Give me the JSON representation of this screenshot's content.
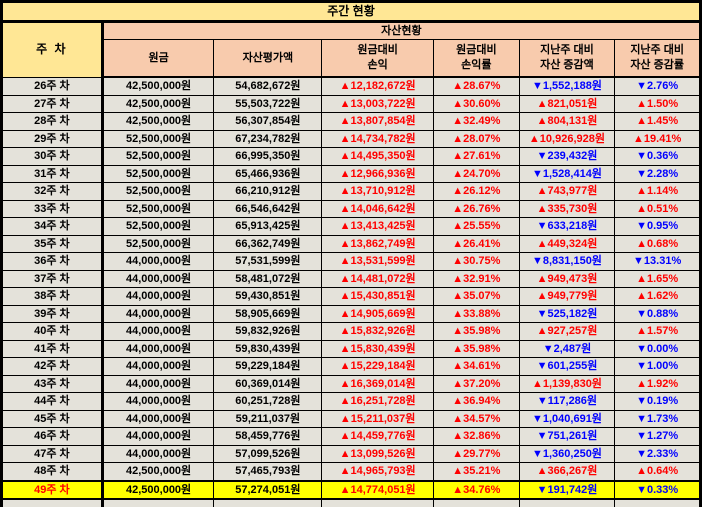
{
  "title": "주간 현황",
  "group_header": "자산현황",
  "week_header": "주 차",
  "columns": [
    {
      "line1": "원금",
      "line2": ""
    },
    {
      "line1": "자산평가액",
      "line2": ""
    },
    {
      "line1": "원금대비",
      "line2": "손익"
    },
    {
      "line1": "원금대비",
      "line2": "손익률"
    },
    {
      "line1": "지난주 대비",
      "line2": "자산 증감액"
    },
    {
      "line1": "지난주 대비",
      "line2": "자산 증감률"
    }
  ],
  "colors": {
    "yellow_header": "#FFE795",
    "peach_header": "#F8CBAD",
    "row_background": "#E4E2DA",
    "highlight_row": "#FFFF00",
    "gain_red": "#FF0000",
    "loss_blue": "#0000FF",
    "border": "#000000"
  },
  "rows": [
    {
      "week": "26주 차",
      "cells": [
        "42,500,000원",
        "54,682,672원",
        "▲12,182,672원",
        "▲28.67%",
        "▼1,552,188원",
        "▼2.76%"
      ],
      "highlight": false
    },
    {
      "week": "27주 차",
      "cells": [
        "42,500,000원",
        "55,503,722원",
        "▲13,003,722원",
        "▲30.60%",
        "▲821,051원",
        "▲1.50%"
      ],
      "highlight": false
    },
    {
      "week": "28주 차",
      "cells": [
        "42,500,000원",
        "56,307,854원",
        "▲13,807,854원",
        "▲32.49%",
        "▲804,131원",
        "▲1.45%"
      ],
      "highlight": false
    },
    {
      "week": "29주 차",
      "cells": [
        "52,500,000원",
        "67,234,782원",
        "▲14,734,782원",
        "▲28.07%",
        "▲10,926,928원",
        "▲19.41%"
      ],
      "highlight": false
    },
    {
      "week": "30주 차",
      "cells": [
        "52,500,000원",
        "66,995,350원",
        "▲14,495,350원",
        "▲27.61%",
        "▼239,432원",
        "▼0.36%"
      ],
      "highlight": false
    },
    {
      "week": "31주 차",
      "cells": [
        "52,500,000원",
        "65,466,936원",
        "▲12,966,936원",
        "▲24.70%",
        "▼1,528,414원",
        "▼2.28%"
      ],
      "highlight": false
    },
    {
      "week": "32주 차",
      "cells": [
        "52,500,000원",
        "66,210,912원",
        "▲13,710,912원",
        "▲26.12%",
        "▲743,977원",
        "▲1.14%"
      ],
      "highlight": false
    },
    {
      "week": "33주 차",
      "cells": [
        "52,500,000원",
        "66,546,642원",
        "▲14,046,642원",
        "▲26.76%",
        "▲335,730원",
        "▲0.51%"
      ],
      "highlight": false
    },
    {
      "week": "34주 차",
      "cells": [
        "52,500,000원",
        "65,913,425원",
        "▲13,413,425원",
        "▲25.55%",
        "▼633,218원",
        "▼0.95%"
      ],
      "highlight": false
    },
    {
      "week": "35주 차",
      "cells": [
        "52,500,000원",
        "66,362,749원",
        "▲13,862,749원",
        "▲26.41%",
        "▲449,324원",
        "▲0.68%"
      ],
      "highlight": false
    },
    {
      "week": "36주 차",
      "cells": [
        "44,000,000원",
        "57,531,599원",
        "▲13,531,599원",
        "▲30.75%",
        "▼8,831,150원",
        "▼13.31%"
      ],
      "highlight": false
    },
    {
      "week": "37주 차",
      "cells": [
        "44,000,000원",
        "58,481,072원",
        "▲14,481,072원",
        "▲32.91%",
        "▲949,473원",
        "▲1.65%"
      ],
      "highlight": false
    },
    {
      "week": "38주 차",
      "cells": [
        "44,000,000원",
        "59,430,851원",
        "▲15,430,851원",
        "▲35.07%",
        "▲949,779원",
        "▲1.62%"
      ],
      "highlight": false
    },
    {
      "week": "39주 차",
      "cells": [
        "44,000,000원",
        "58,905,669원",
        "▲14,905,669원",
        "▲33.88%",
        "▼525,182원",
        "▼0.88%"
      ],
      "highlight": false
    },
    {
      "week": "40주 차",
      "cells": [
        "44,000,000원",
        "59,832,926원",
        "▲15,832,926원",
        "▲35.98%",
        "▲927,257원",
        "▲1.57%"
      ],
      "highlight": false
    },
    {
      "week": "41주 차",
      "cells": [
        "44,000,000원",
        "59,830,439원",
        "▲15,830,439원",
        "▲35.98%",
        "▼2,487원",
        "▼0.00%"
      ],
      "highlight": false
    },
    {
      "week": "42주 차",
      "cells": [
        "44,000,000원",
        "59,229,184원",
        "▲15,229,184원",
        "▲34.61%",
        "▼601,255원",
        "▼1.00%"
      ],
      "highlight": false
    },
    {
      "week": "43주 차",
      "cells": [
        "44,000,000원",
        "60,369,014원",
        "▲16,369,014원",
        "▲37.20%",
        "▲1,139,830원",
        "▲1.92%"
      ],
      "highlight": false
    },
    {
      "week": "44주 차",
      "cells": [
        "44,000,000원",
        "60,251,728원",
        "▲16,251,728원",
        "▲36.94%",
        "▼117,286원",
        "▼0.19%"
      ],
      "highlight": false
    },
    {
      "week": "45주 차",
      "cells": [
        "44,000,000원",
        "59,211,037원",
        "▲15,211,037원",
        "▲34.57%",
        "▼1,040,691원",
        "▼1.73%"
      ],
      "highlight": false
    },
    {
      "week": "46주 차",
      "cells": [
        "44,000,000원",
        "58,459,776원",
        "▲14,459,776원",
        "▲32.86%",
        "▼751,261원",
        "▼1.27%"
      ],
      "highlight": false
    },
    {
      "week": "47주 차",
      "cells": [
        "44,000,000원",
        "57,099,526원",
        "▲13,099,526원",
        "▲29.77%",
        "▼1,360,250원",
        "▼2.33%"
      ],
      "highlight": false
    },
    {
      "week": "48주 차",
      "cells": [
        "42,500,000원",
        "57,465,793원",
        "▲14,965,793원",
        "▲35.21%",
        "▲366,267원",
        "▲0.64%"
      ],
      "highlight": false
    },
    {
      "week": "49주 차",
      "cells": [
        "42,500,000원",
        "57,274,051원",
        "▲14,774,051원",
        "▲34.76%",
        "▼191,742원",
        "▼0.33%"
      ],
      "highlight": true
    }
  ]
}
